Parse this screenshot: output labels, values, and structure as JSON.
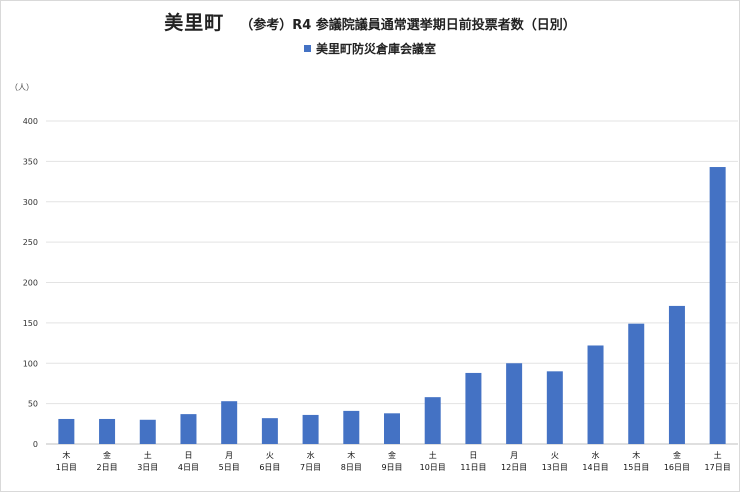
{
  "chart_data": {
    "type": "bar",
    "title": "美里町",
    "subtitle": "（参考）R4 参議院議員通常選挙期日前投票者数（日別）",
    "unit_label": "（人）",
    "legend_position": "top",
    "grid": true,
    "ylim": [
      0,
      400
    ],
    "yticks": [
      0,
      50,
      100,
      150,
      200,
      250,
      300,
      350,
      400
    ],
    "categories": [
      {
        "weekday": "木",
        "day": "1日目"
      },
      {
        "weekday": "金",
        "day": "2日目"
      },
      {
        "weekday": "土",
        "day": "3日目"
      },
      {
        "weekday": "日",
        "day": "4日目"
      },
      {
        "weekday": "月",
        "day": "5日目"
      },
      {
        "weekday": "火",
        "day": "6日目"
      },
      {
        "weekday": "水",
        "day": "7日目"
      },
      {
        "weekday": "木",
        "day": "8日目"
      },
      {
        "weekday": "金",
        "day": "9日目"
      },
      {
        "weekday": "土",
        "day": "10日目"
      },
      {
        "weekday": "日",
        "day": "11日目"
      },
      {
        "weekday": "月",
        "day": "12日目"
      },
      {
        "weekday": "火",
        "day": "13日目"
      },
      {
        "weekday": "水",
        "day": "14日目"
      },
      {
        "weekday": "木",
        "day": "15日目"
      },
      {
        "weekday": "金",
        "day": "16日目"
      },
      {
        "weekday": "土",
        "day": "17日目"
      }
    ],
    "series": [
      {
        "name": "美里町防災倉庫会議室",
        "color": "#4472c4",
        "values": [
          31,
          31,
          30,
          37,
          53,
          32,
          36,
          41,
          38,
          58,
          88,
          100,
          90,
          122,
          149,
          171,
          343
        ]
      }
    ]
  }
}
